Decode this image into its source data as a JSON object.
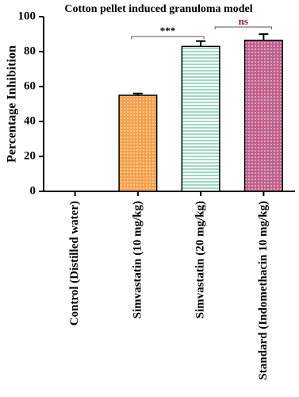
{
  "chart_data": {
    "type": "bar",
    "title": "Cotton pellet induced granuloma model",
    "y_label": "Percentage Inhibition",
    "categories": [
      "Control (Distilled water)",
      "Simvastatin (10 mg/kg)",
      "Simvastatin (20 mg/kg)",
      "Standard (Indomethacin 10 mg/kg)"
    ],
    "values": [
      0,
      55,
      83,
      86.5
    ],
    "errors": [
      null,
      1,
      3,
      3.5
    ],
    "colors": [
      "#ffffff",
      "#f5a04a",
      "#9fd9c4",
      "#c0608c"
    ],
    "ylim": [
      0,
      100
    ],
    "yticks": [
      0,
      20,
      40,
      60,
      80,
      100
    ],
    "annotations": [
      {
        "text": "***",
        "color": "#000000"
      },
      {
        "text": "ns",
        "color": "#8b1a4a"
      }
    ]
  }
}
